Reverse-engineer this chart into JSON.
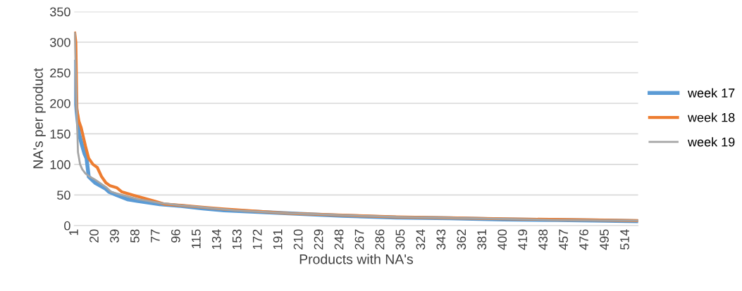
{
  "chart_data": {
    "type": "line",
    "xlabel": "Products with NA's",
    "ylabel": "NA's per product",
    "xlim": [
      0.5,
      525.5
    ],
    "xticks": [
      1,
      20,
      39,
      58,
      77,
      96,
      115,
      134,
      153,
      172,
      191,
      210,
      229,
      248,
      267,
      286,
      305,
      324,
      343,
      362,
      381,
      400,
      419,
      438,
      457,
      476,
      495,
      514
    ],
    "ylim": [
      0,
      350
    ],
    "yticks": [
      0,
      50,
      100,
      150,
      200,
      250,
      300,
      350
    ],
    "grid": "y",
    "legend": "right",
    "series": [
      {
        "name": "week 17",
        "color": "#5b9bd5",
        "x": [
          1,
          2,
          5,
          8,
          10,
          12,
          14,
          20,
          30,
          33,
          40,
          50,
          60,
          80,
          100,
          120,
          140,
          200,
          250,
          300,
          350,
          400,
          450,
          495,
          525
        ],
        "values": [
          268,
          200,
          150,
          130,
          118,
          110,
          80,
          70,
          60,
          55,
          50,
          43,
          40,
          35,
          32,
          28,
          25,
          20,
          16,
          13,
          12,
          10,
          9,
          8,
          7
        ]
      },
      {
        "name": "week 18",
        "color": "#ed7d31",
        "x": [
          1,
          2,
          3,
          5,
          7,
          9,
          11,
          14,
          18,
          22,
          26,
          30,
          34,
          40,
          45,
          55,
          65,
          75,
          85,
          100,
          120,
          140,
          200,
          300,
          400,
          525
        ],
        "values": [
          315,
          300,
          190,
          170,
          160,
          145,
          130,
          110,
          100,
          95,
          80,
          70,
          65,
          62,
          55,
          50,
          45,
          40,
          35,
          33,
          30,
          27,
          20,
          14,
          11,
          8
        ]
      },
      {
        "name": "week 19",
        "color": "#a5a5a5",
        "x": [
          1,
          2,
          3,
          4,
          6,
          8,
          11,
          15,
          20,
          30,
          35,
          45,
          60,
          80,
          100,
          120,
          150,
          200,
          300,
          400,
          450,
          525
        ],
        "values": [
          315,
          250,
          180,
          120,
          100,
          92,
          85,
          80,
          75,
          63,
          55,
          50,
          43,
          37,
          33,
          30,
          25,
          20,
          14,
          11,
          9,
          8
        ]
      }
    ]
  }
}
